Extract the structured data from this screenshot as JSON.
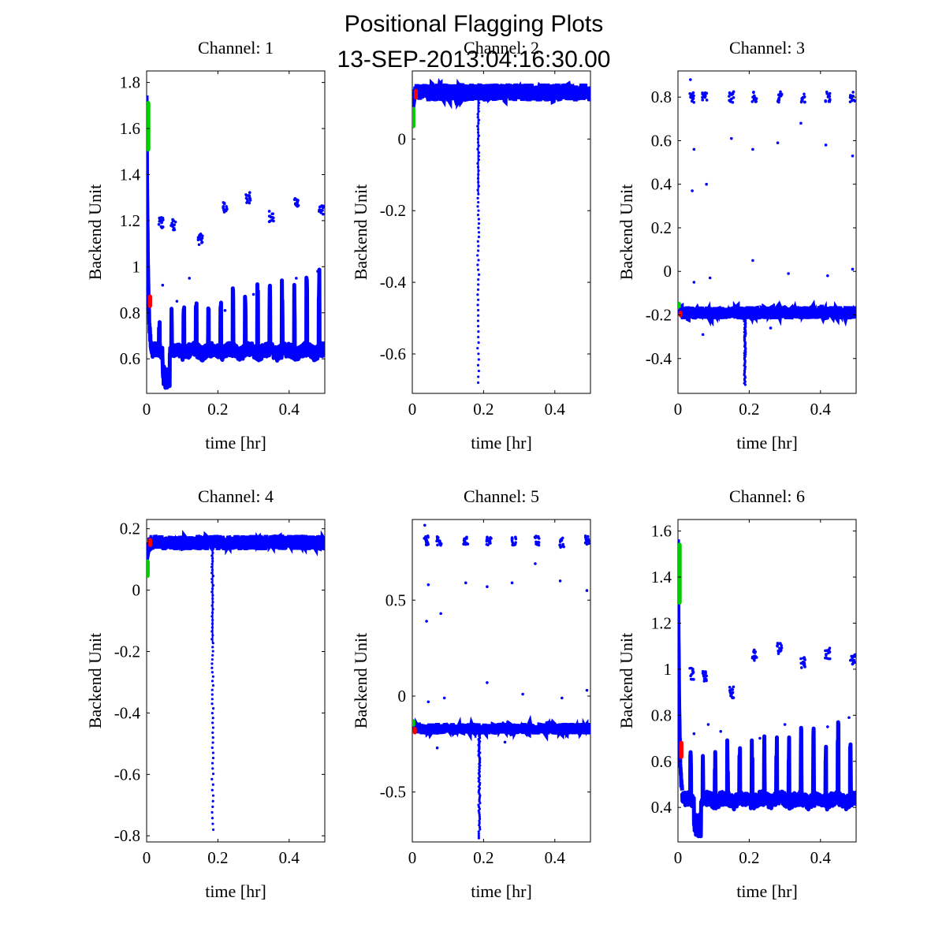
{
  "figure": {
    "title_line1": "Positional Flagging Plots",
    "title_line2": "13-SEP-2013:04:16:30.00"
  },
  "colors": {
    "series_blue": "#0000ff",
    "flag_green": "#00cc00",
    "flag_red": "#ff0000",
    "axes": "#000000"
  },
  "chart_data": [
    {
      "type": "scatter",
      "title": "Channel: 1",
      "xlabel": "time [hr]",
      "ylabel": "Backend Unit",
      "xlim": [
        0,
        0.5
      ],
      "ylim": [
        0.45,
        1.85
      ],
      "xticks": [
        0,
        0.2,
        0.4
      ],
      "yticks": [
        0.6,
        0.8,
        1,
        1.2,
        1.4,
        1.6,
        1.8
      ],
      "ytick_labels": [
        "0.6",
        "0.8",
        "1",
        "1.2",
        "1.4",
        "1.6",
        "1.8"
      ],
      "model": "noisy",
      "base": 0.62,
      "noise": 0.03,
      "spike_max": 0.36,
      "dip_min": 0.47,
      "initial_peak": 1.72,
      "clusters": [
        [
          0.04,
          1.19
        ],
        [
          0.075,
          1.18
        ],
        [
          0.15,
          1.12
        ],
        [
          0.22,
          1.26
        ],
        [
          0.285,
          1.3
        ],
        [
          0.35,
          1.22
        ],
        [
          0.42,
          1.28
        ],
        [
          0.49,
          1.24
        ]
      ],
      "scattered": [
        [
          0.045,
          0.92
        ],
        [
          0.085,
          0.85
        ],
        [
          0.12,
          0.95
        ],
        [
          0.22,
          0.81
        ],
        [
          0.3,
          0.88
        ],
        [
          0.42,
          0.95
        ],
        [
          0.45,
          0.91
        ],
        [
          0.48,
          0.98
        ]
      ],
      "green": [
        0.003,
        1.5,
        0.006,
        1.72
      ],
      "red": [
        0.008,
        0.82,
        0.011,
        0.88
      ]
    },
    {
      "type": "scatter",
      "title": "Channel: 2",
      "xlabel": "time [hr]",
      "ylabel": "Backend Unit",
      "xlim": [
        0,
        0.5
      ],
      "ylim": [
        -0.71,
        0.19
      ],
      "xticks": [
        0,
        0.2,
        0.4
      ],
      "yticks": [
        -0.6,
        -0.4,
        -0.2,
        0
      ],
      "ytick_labels": [
        "-0.6",
        "-0.4",
        "-0.2",
        "0"
      ],
      "model": "flat",
      "level": 0.13,
      "band": 0.025,
      "start_level": 0.08,
      "dip_x": 0.185,
      "dip_min": -0.68,
      "clusters": [],
      "scattered": [],
      "green": [
        0.002,
        0.03,
        0.004,
        0.09
      ],
      "red": [
        0.009,
        0.11,
        0.011,
        0.14
      ]
    },
    {
      "type": "scatter",
      "title": "Channel: 3",
      "xlabel": "time [hr]",
      "ylabel": "Backend Unit",
      "xlim": [
        0,
        0.5
      ],
      "ylim": [
        -0.56,
        0.92
      ],
      "xticks": [
        0,
        0.2,
        0.4
      ],
      "yticks": [
        -0.4,
        -0.2,
        0,
        0.2,
        0.4,
        0.6,
        0.8
      ],
      "ytick_labels": [
        "-0.4",
        "-0.2",
        "0",
        "0.2",
        "0.4",
        "0.6",
        "0.8"
      ],
      "model": "flat",
      "level": -0.19,
      "band": 0.03,
      "start_level": -0.18,
      "dip_x": 0.188,
      "dip_min": -0.52,
      "clusters": [
        [
          0.04,
          0.8
        ],
        [
          0.075,
          0.8
        ],
        [
          0.15,
          0.8
        ],
        [
          0.215,
          0.8
        ],
        [
          0.285,
          0.8
        ],
        [
          0.35,
          0.8
        ],
        [
          0.42,
          0.8
        ],
        [
          0.49,
          0.8
        ]
      ],
      "scattered": [
        [
          0.035,
          0.88
        ],
        [
          0.04,
          0.37
        ],
        [
          0.045,
          0.56
        ],
        [
          0.08,
          0.4
        ],
        [
          0.15,
          0.61
        ],
        [
          0.21,
          0.56
        ],
        [
          0.28,
          0.59
        ],
        [
          0.345,
          0.68
        ],
        [
          0.415,
          0.58
        ],
        [
          0.49,
          0.53
        ],
        [
          0.21,
          0.05
        ],
        [
          0.045,
          -0.05
        ],
        [
          0.09,
          -0.03
        ],
        [
          0.31,
          -0.01
        ],
        [
          0.42,
          -0.02
        ],
        [
          0.49,
          0.01
        ],
        [
          0.07,
          -0.29
        ],
        [
          0.26,
          -0.26
        ]
      ],
      "green": [
        0.002,
        -0.17,
        0.004,
        -0.14
      ],
      "red": [
        0.006,
        -0.21,
        0.008,
        -0.18
      ]
    },
    {
      "type": "scatter",
      "title": "Channel: 4",
      "xlabel": "time [hr]",
      "ylabel": "Backend Unit",
      "xlim": [
        0,
        0.5
      ],
      "ylim": [
        -0.82,
        0.23
      ],
      "xticks": [
        0,
        0.2,
        0.4
      ],
      "yticks": [
        -0.8,
        -0.6,
        -0.4,
        -0.2,
        0,
        0.2
      ],
      "ytick_labels": [
        "-0.8",
        "-0.6",
        "-0.4",
        "-0.2",
        "0",
        "0.2"
      ],
      "model": "flat",
      "level": 0.155,
      "band": 0.025,
      "start_level": 0.1,
      "dip_x": 0.185,
      "dip_min": -0.78,
      "clusters": [],
      "scattered": [],
      "green": [
        0.002,
        0.04,
        0.004,
        0.1
      ],
      "red": [
        0.009,
        0.14,
        0.011,
        0.17
      ]
    },
    {
      "type": "scatter",
      "title": "Channel: 5",
      "xlabel": "time [hr]",
      "ylabel": "Backend Unit",
      "xlim": [
        0,
        0.5
      ],
      "ylim": [
        -0.76,
        0.92
      ],
      "xticks": [
        0,
        0.2,
        0.4
      ],
      "yticks": [
        -0.5,
        0,
        0.5
      ],
      "ytick_labels": [
        "-0.5",
        "0",
        "0.5"
      ],
      "model": "flat",
      "level": -0.17,
      "band": 0.03,
      "start_level": -0.16,
      "dip_x": 0.188,
      "dip_min": -0.74,
      "clusters": [
        [
          0.04,
          0.81
        ],
        [
          0.075,
          0.81
        ],
        [
          0.15,
          0.81
        ],
        [
          0.215,
          0.81
        ],
        [
          0.285,
          0.81
        ],
        [
          0.35,
          0.81
        ],
        [
          0.42,
          0.8
        ],
        [
          0.49,
          0.81
        ]
      ],
      "scattered": [
        [
          0.035,
          0.89
        ],
        [
          0.04,
          0.39
        ],
        [
          0.045,
          0.58
        ],
        [
          0.08,
          0.43
        ],
        [
          0.15,
          0.59
        ],
        [
          0.21,
          0.57
        ],
        [
          0.28,
          0.59
        ],
        [
          0.345,
          0.69
        ],
        [
          0.415,
          0.6
        ],
        [
          0.49,
          0.55
        ],
        [
          0.21,
          0.07
        ],
        [
          0.045,
          -0.03
        ],
        [
          0.09,
          -0.01
        ],
        [
          0.31,
          0.01
        ],
        [
          0.42,
          -0.01
        ],
        [
          0.49,
          0.03
        ],
        [
          0.07,
          -0.27
        ],
        [
          0.26,
          -0.24
        ]
      ],
      "green": [
        0.002,
        -0.16,
        0.004,
        -0.12
      ],
      "red": [
        0.006,
        -0.2,
        0.008,
        -0.16
      ]
    },
    {
      "type": "scatter",
      "title": "Channel: 6",
      "xlabel": "time [hr]",
      "ylabel": "Backend Unit",
      "xlim": [
        0,
        0.5
      ],
      "ylim": [
        0.25,
        1.65
      ],
      "xticks": [
        0,
        0.2,
        0.4
      ],
      "yticks": [
        0.4,
        0.6,
        0.8,
        1,
        1.2,
        1.4,
        1.6
      ],
      "ytick_labels": [
        "0.4",
        "0.6",
        "0.8",
        "1",
        "1.2",
        "1.4",
        "1.6"
      ],
      "model": "noisy",
      "base": 0.42,
      "noise": 0.03,
      "spike_max": 0.36,
      "dip_min": 0.27,
      "initial_peak": 1.55,
      "clusters": [
        [
          0.04,
          0.98
        ],
        [
          0.075,
          0.97
        ],
        [
          0.15,
          0.9
        ],
        [
          0.215,
          1.06
        ],
        [
          0.285,
          1.09
        ],
        [
          0.35,
          1.03
        ],
        [
          0.42,
          1.07
        ],
        [
          0.49,
          1.04
        ]
      ],
      "scattered": [
        [
          0.045,
          0.72
        ],
        [
          0.085,
          0.76
        ],
        [
          0.12,
          0.73
        ],
        [
          0.23,
          0.7
        ],
        [
          0.3,
          0.76
        ],
        [
          0.42,
          0.75
        ],
        [
          0.45,
          0.72
        ],
        [
          0.48,
          0.79
        ]
      ],
      "green": [
        0.003,
        1.28,
        0.006,
        1.55
      ],
      "red": [
        0.008,
        0.61,
        0.011,
        0.69
      ]
    }
  ]
}
